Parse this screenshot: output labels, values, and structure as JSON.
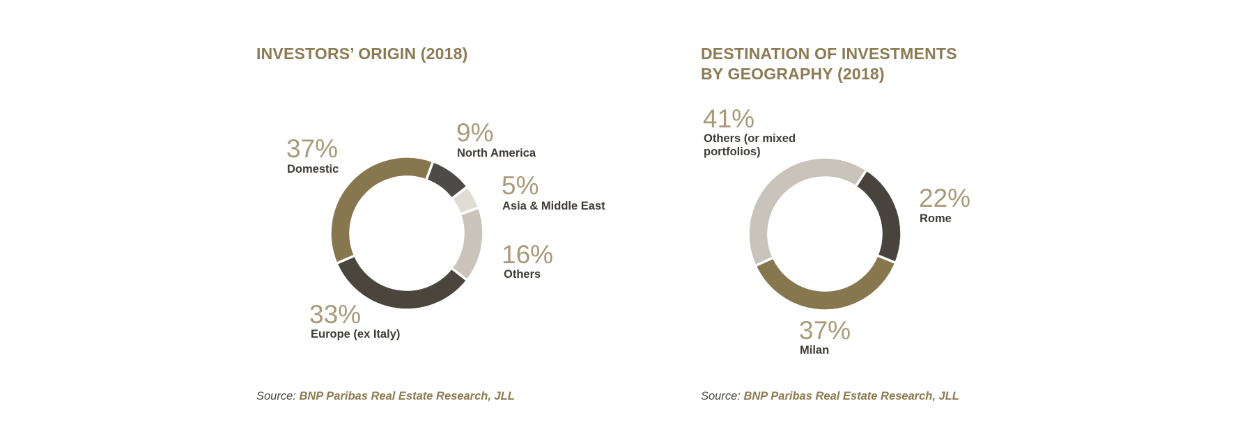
{
  "colors": {
    "gold": "#86774f",
    "dark": "#4a453d",
    "charcoal": "#4d4b47",
    "light": "#e0dcd3",
    "grey": "#cac4bb",
    "greyAlt": "#c9c4bb",
    "darkAlt": "#48443d",
    "title": "#8c7a50"
  },
  "chart_data": [
    {
      "type": "pie",
      "title": "INVESTORS’ ORIGIN (2018)",
      "source_prefix": "Source:",
      "source_name": "BNP Paribas Real Estate Research, JLL",
      "slices": [
        {
          "label": "North America",
          "value": 9,
          "value_text": "9%",
          "color": "#4d4b47"
        },
        {
          "label": "Asia & Middle East",
          "value": 5,
          "value_text": "5%",
          "color": "#e0dcd3"
        },
        {
          "label": "Others",
          "value": 16,
          "value_text": "16%",
          "color": "#cac4bb"
        },
        {
          "label": "Europe (ex Italy)",
          "value": 33,
          "value_text": "33%",
          "color": "#4a453d"
        },
        {
          "label": "Domestic",
          "value": 37,
          "value_text": "37%",
          "color": "#86774f"
        }
      ]
    },
    {
      "type": "pie",
      "title_lines": [
        "DESTINATION OF INVESTMENTS",
        "BY GEOGRAPHY (2018)"
      ],
      "source_prefix": "Source:",
      "source_name": "BNP Paribas Real Estate Research, JLL",
      "slices": [
        {
          "label": "Rome",
          "value": 22,
          "value_text": "22%",
          "color": "#48443d"
        },
        {
          "label": "Milan",
          "value": 37,
          "value_text": "37%",
          "color": "#86774f"
        },
        {
          "label": "Others (or mixed portfolios)",
          "label_lines": [
            "Others (or mixed",
            "portfolios)"
          ],
          "value": 41,
          "value_text": "41%",
          "color": "#c9c4bb"
        }
      ]
    }
  ]
}
